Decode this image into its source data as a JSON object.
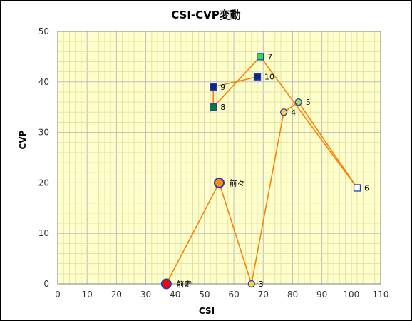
{
  "chart_data": {
    "type": "scatter",
    "title": "CSI-CVP変動",
    "xlabel": "CSI",
    "ylabel": "CVP",
    "xlim": [
      0,
      110
    ],
    "ylim": [
      0,
      50
    ],
    "x_ticks": [
      0,
      10,
      20,
      30,
      40,
      50,
      60,
      70,
      80,
      90,
      100,
      110
    ],
    "y_ticks": [
      0,
      10,
      20,
      30,
      40,
      50
    ],
    "minor_grid": true,
    "colors": {
      "plot_background": "#ffffcc",
      "line": "#ff8000",
      "marker_border": "#1f3fbf"
    },
    "points": [
      {
        "label": "前走",
        "x": 37,
        "y": 0,
        "marker": "circle",
        "fill": "#ff0000",
        "size": "large"
      },
      {
        "label": "前々",
        "x": 55,
        "y": 20,
        "marker": "circle",
        "fill": "#ff8c00",
        "size": "large"
      },
      {
        "label": "3",
        "x": 66,
        "y": 0,
        "marker": "circle",
        "fill": "#ffd040",
        "size": "small"
      },
      {
        "label": "4",
        "x": 77,
        "y": 34,
        "marker": "circle",
        "fill": "#ffd040",
        "size": "small"
      },
      {
        "label": "5",
        "x": 82,
        "y": 36,
        "marker": "circle",
        "fill": "#aedd50",
        "size": "small"
      },
      {
        "label": "6",
        "x": 102,
        "y": 19,
        "marker": "square",
        "fill": "#ffffff",
        "size": "small"
      },
      {
        "label": "7",
        "x": 69,
        "y": 45,
        "marker": "square",
        "fill": "#33dd44",
        "size": "small"
      },
      {
        "label": "8",
        "x": 53,
        "y": 35,
        "marker": "square",
        "fill": "#0e7a30",
        "size": "small"
      },
      {
        "label": "9",
        "x": 53,
        "y": 39,
        "marker": "square",
        "fill": "#0a2a8a",
        "size": "small"
      },
      {
        "label": "10",
        "x": 68,
        "y": 41,
        "marker": "square",
        "fill": "#0a2a8a",
        "size": "small"
      }
    ]
  }
}
